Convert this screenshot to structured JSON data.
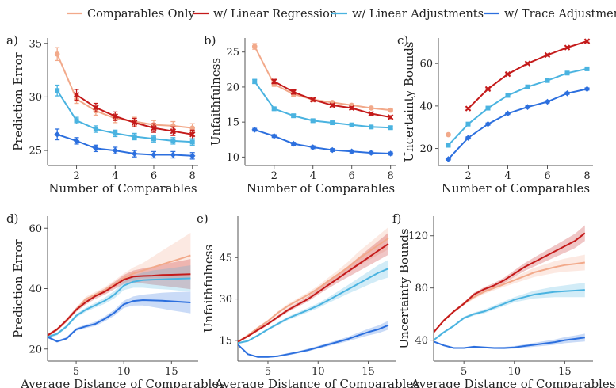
{
  "legend": [
    {
      "label": "Comparables Only",
      "color": "#f2a98a"
    },
    {
      "label": "w/ Linear Regression",
      "color": "#c41a1a"
    },
    {
      "label": "w/ Linear Adjustments",
      "color": "#4ab3e0"
    },
    {
      "label": "w/ Trace Adjustment",
      "color": "#2c6fde"
    }
  ],
  "chart_data": [
    {
      "type": "line",
      "panel": "a)",
      "xlabel": "Number of Comparables",
      "ylabel": "Prediction Error",
      "x": [
        1,
        2,
        3,
        4,
        5,
        6,
        7,
        8
      ],
      "xlim": [
        0.5,
        8.3
      ],
      "ylim": [
        23.6,
        35.5
      ],
      "xticks": [
        2,
        4,
        6,
        8
      ],
      "yticks": [
        25,
        30,
        35
      ],
      "error_bars": true,
      "series": [
        {
          "name": "Comparables Only",
          "values": [
            34.0,
            29.8,
            28.7,
            28.0,
            27.7,
            27.4,
            27.3,
            27.1
          ],
          "err": [
            0.6,
            0.4,
            0.4,
            0.4,
            0.4,
            0.4,
            0.4,
            0.4
          ]
        },
        {
          "name": "w/ Linear Regression",
          "values": [
            null,
            30.2,
            29.0,
            28.2,
            27.6,
            27.1,
            26.8,
            26.5
          ],
          "err": [
            null,
            0.5,
            0.4,
            0.4,
            0.4,
            0.4,
            0.4,
            0.4
          ]
        },
        {
          "name": "w/ Linear Adjustments",
          "values": [
            30.6,
            27.8,
            27.0,
            26.6,
            26.3,
            26.1,
            25.9,
            25.8
          ],
          "err": [
            0.5,
            0.3,
            0.3,
            0.3,
            0.3,
            0.3,
            0.3,
            0.3
          ]
        },
        {
          "name": "w/ Trace Adjustment",
          "values": [
            26.5,
            25.9,
            25.2,
            25.0,
            24.7,
            24.6,
            24.6,
            24.5
          ],
          "err": [
            0.5,
            0.3,
            0.3,
            0.3,
            0.3,
            0.3,
            0.3,
            0.3
          ]
        }
      ]
    },
    {
      "type": "line",
      "panel": "b)",
      "xlabel": "Number of Comparables",
      "ylabel": "Unfaithfulness",
      "x": [
        1,
        2,
        3,
        4,
        5,
        6,
        7,
        8
      ],
      "xlim": [
        0.5,
        8.3
      ],
      "ylim": [
        8.8,
        27
      ],
      "xticks": [
        2,
        4,
        6,
        8
      ],
      "yticks": [
        10,
        15,
        20,
        25
      ],
      "error_bars": true,
      "series": [
        {
          "name": "Comparables Only",
          "values": [
            25.8,
            20.4,
            19.0,
            18.2,
            17.8,
            17.4,
            17.0,
            16.7
          ],
          "err": [
            0.4,
            0.3,
            0.3,
            0.2,
            0.2,
            0.2,
            0.2,
            0.2
          ]
        },
        {
          "name": "w/ Linear Regression",
          "values": [
            null,
            20.8,
            19.3,
            18.2,
            17.4,
            17.0,
            16.2,
            15.7
          ],
          "err": [
            null,
            0.3,
            0.3,
            0.2,
            0.2,
            0.2,
            0.2,
            0.2
          ]
        },
        {
          "name": "w/ Linear Adjustments",
          "values": [
            20.8,
            16.9,
            15.9,
            15.2,
            14.9,
            14.6,
            14.3,
            14.2
          ],
          "err": [
            0.3,
            0.2,
            0.2,
            0.2,
            0.2,
            0.2,
            0.2,
            0.2
          ]
        },
        {
          "name": "w/ Trace Adjustment",
          "values": [
            13.9,
            13.0,
            11.9,
            11.4,
            11.0,
            10.8,
            10.6,
            10.5
          ],
          "err": [
            0.2,
            0.2,
            0.2,
            0.2,
            0.2,
            0.2,
            0.2,
            0.2
          ]
        }
      ]
    },
    {
      "type": "line",
      "panel": "c)",
      "xlabel": "Number of Comparables",
      "ylabel": "Uncertainty Bounds",
      "x": [
        1,
        2,
        3,
        4,
        5,
        6,
        7,
        8
      ],
      "xlim": [
        0.5,
        8.3
      ],
      "ylim": [
        12,
        72
      ],
      "xticks": [
        2,
        4,
        6,
        8
      ],
      "yticks": [
        20,
        40,
        60
      ],
      "error_bars": true,
      "series": [
        {
          "name": "Comparables Only",
          "values": [
            26.5,
            null,
            null,
            null,
            null,
            null,
            null,
            null
          ],
          "err": [
            0.5,
            null,
            null,
            null,
            null,
            null,
            null,
            null
          ]
        },
        {
          "name": "w/ Linear Regression",
          "values": [
            null,
            38.8,
            48.0,
            55.0,
            60.0,
            64.0,
            67.5,
            70.5
          ],
          "err": [
            null,
            0.5,
            0.5,
            0.5,
            0.5,
            0.5,
            0.5,
            0.5
          ]
        },
        {
          "name": "w/ Linear Adjustments",
          "values": [
            21.5,
            31.5,
            39.0,
            45.0,
            49.0,
            52.0,
            55.5,
            57.5
          ],
          "err": [
            0.5,
            0.5,
            0.5,
            0.5,
            0.5,
            0.5,
            0.5,
            0.5
          ]
        },
        {
          "name": "w/ Trace Adjustment",
          "values": [
            15.0,
            25.0,
            31.5,
            36.5,
            39.5,
            42.0,
            46.0,
            48.0
          ],
          "err": [
            0.5,
            0.5,
            0.5,
            0.5,
            0.5,
            0.5,
            0.5,
            0.5
          ]
        }
      ]
    },
    {
      "type": "area",
      "panel": "d)",
      "xlabel": "Average Distance of Comparables",
      "ylabel": "Prediction Error",
      "x": [
        2,
        3,
        4,
        5,
        6,
        7,
        8,
        9,
        10,
        11,
        12,
        13,
        14,
        15,
        16,
        17
      ],
      "xlim": [
        2,
        17.8
      ],
      "ylim": [
        16,
        64
      ],
      "xticks": [
        5,
        10,
        15
      ],
      "yticks": [
        20,
        40,
        60
      ],
      "bands": true,
      "series": [
        {
          "name": "Comparables Only",
          "values": [
            24.5,
            26.5,
            29.5,
            33,
            36.5,
            38,
            39.5,
            41.5,
            43.5,
            45,
            46,
            47,
            48,
            49,
            50,
            51
          ],
          "band": [
            0.5,
            0.5,
            0.6,
            0.7,
            0.8,
            0.9,
            1,
            1.2,
            1.5,
            2,
            2.5,
            3.5,
            4.5,
            5.5,
            6.5,
            7.5
          ]
        },
        {
          "name": "w/ Linear Regression",
          "values": [
            24.5,
            26.5,
            29.5,
            33,
            35.5,
            37.5,
            39,
            41,
            43,
            44,
            44.2,
            44.3,
            44.5,
            44.6,
            44.7,
            44.8
          ],
          "band": [
            0.5,
            0.5,
            0.6,
            0.7,
            0.8,
            0.9,
            1,
            1.2,
            1.5,
            2,
            2.5,
            3,
            3.5,
            4,
            4.5,
            5
          ]
        },
        {
          "name": "w/ Linear Adjustments",
          "values": [
            24,
            25,
            27.5,
            31,
            33,
            34.5,
            36,
            38,
            41,
            42.3,
            42.8,
            43,
            43.1,
            43.2,
            43.3,
            43.4
          ],
          "band": [
            0.5,
            0.5,
            0.5,
            0.6,
            0.7,
            0.8,
            1,
            1.2,
            1.5,
            2,
            2.5,
            3,
            3.3,
            3.6,
            4,
            4.3
          ]
        },
        {
          "name": "w/ Trace Adjustment",
          "values": [
            24,
            22.5,
            23.5,
            26.5,
            27.5,
            28.3,
            30,
            32,
            34.8,
            35.9,
            36.2,
            36.1,
            36,
            35.8,
            35.6,
            35.4
          ],
          "band": [
            0.4,
            0.4,
            0.4,
            0.5,
            0.6,
            0.7,
            0.8,
            1,
            1.2,
            1.5,
            1.8,
            2.2,
            2.6,
            3,
            3.3,
            3.6
          ]
        }
      ]
    },
    {
      "type": "area",
      "panel": "e)",
      "xlabel": "Average Distance of Comparables",
      "ylabel": "Unfaithfulness",
      "x": [
        2,
        3,
        4,
        5,
        6,
        7,
        8,
        9,
        10,
        11,
        12,
        13,
        14,
        15,
        16,
        17
      ],
      "xlim": [
        2,
        17.8
      ],
      "ylim": [
        7.5,
        60
      ],
      "xticks": [
        5,
        10,
        15
      ],
      "yticks": [
        15,
        30,
        45
      ],
      "bands": true,
      "series": [
        {
          "name": "Comparables Only",
          "values": [
            14.5,
            16.8,
            19.5,
            22,
            25,
            27.5,
            29.5,
            31.5,
            33.8,
            36.5,
            39,
            41.5,
            44.5,
            47,
            49.5,
            52
          ],
          "band": [
            0.4,
            0.4,
            0.5,
            0.5,
            0.6,
            0.7,
            0.8,
            0.9,
            1,
            1.2,
            1.5,
            2,
            2.5,
            3,
            3.5,
            4
          ]
        },
        {
          "name": "w/ Linear Regression",
          "values": [
            14.5,
            16.5,
            18.8,
            21,
            23.5,
            26,
            28,
            30,
            32.5,
            35,
            37.5,
            40,
            42.5,
            45,
            47.5,
            50
          ],
          "band": [
            0.4,
            0.4,
            0.5,
            0.5,
            0.6,
            0.7,
            0.8,
            0.9,
            1,
            1.2,
            1.5,
            2,
            2.5,
            3,
            3.5,
            4
          ]
        },
        {
          "name": "w/ Linear Adjustments",
          "values": [
            14,
            14.8,
            16.8,
            19,
            21,
            23,
            24.5,
            26,
            27.6,
            29.5,
            31.5,
            33.5,
            35.5,
            37.5,
            39.5,
            41
          ],
          "band": [
            0.3,
            0.3,
            0.4,
            0.4,
            0.5,
            0.6,
            0.7,
            0.8,
            0.9,
            1,
            1.3,
            1.6,
            2,
            2.4,
            2.8,
            3.2
          ]
        },
        {
          "name": "w/ Trace Adjustment",
          "values": [
            13.5,
            10,
            9,
            9,
            9.3,
            10,
            10.7,
            11.5,
            12.5,
            13.5,
            14.5,
            15.5,
            16.8,
            18,
            19,
            20.5
          ],
          "band": [
            0.3,
            0.3,
            0.3,
            0.3,
            0.3,
            0.4,
            0.4,
            0.5,
            0.5,
            0.6,
            0.7,
            0.8,
            1,
            1.2,
            1.4,
            1.6
          ]
        }
      ]
    },
    {
      "type": "area",
      "panel": "f)",
      "xlabel": "Average Distance of Comparables",
      "ylabel": "Uncertainty Bounds",
      "x": [
        2,
        3,
        4,
        5,
        6,
        7,
        8,
        9,
        10,
        11,
        12,
        13,
        14,
        15,
        16,
        17
      ],
      "xlim": [
        2,
        17.8
      ],
      "ylim": [
        24,
        135
      ],
      "xticks": [
        5,
        10,
        15
      ],
      "yticks": [
        40,
        80,
        120
      ],
      "bands": true,
      "series": [
        {
          "name": "Comparables Only",
          "values": [
            46,
            55,
            62,
            68,
            73,
            77,
            80,
            83,
            86,
            89,
            92,
            94,
            96,
            97.5,
            98.5,
            99.5
          ],
          "band": [
            1,
            1,
            1,
            1.2,
            1.4,
            1.6,
            1.8,
            2,
            2.5,
            3,
            3.5,
            4,
            4.5,
            5,
            5.5,
            6
          ]
        },
        {
          "name": "w/ Linear Regression",
          "values": [
            46,
            55,
            62,
            68,
            75,
            79,
            82,
            86,
            91,
            96,
            100,
            104,
            108,
            112,
            116,
            122
          ],
          "band": [
            1,
            1,
            1,
            1.2,
            1.4,
            1.6,
            1.8,
            2,
            2.5,
            3,
            3.5,
            4,
            4.5,
            5,
            5.5,
            6
          ]
        },
        {
          "name": "w/ Linear Adjustments",
          "values": [
            40,
            46,
            51,
            57,
            60,
            62,
            65,
            68,
            71,
            73,
            75,
            76,
            77,
            77.5,
            78,
            78.5
          ],
          "band": [
            0.8,
            0.8,
            0.9,
            1,
            1.2,
            1.4,
            1.6,
            1.8,
            2,
            2.5,
            3,
            3.5,
            4,
            4.5,
            5,
            5.5
          ]
        },
        {
          "name": "w/ Trace Adjustment",
          "values": [
            39,
            36,
            34,
            34,
            35,
            34.5,
            34,
            34,
            34.5,
            35.5,
            36.5,
            37.5,
            38.5,
            40,
            41,
            42
          ],
          "band": [
            0.5,
            0.5,
            0.5,
            0.5,
            0.6,
            0.7,
            0.8,
            0.9,
            1,
            1.2,
            1.5,
            1.8,
            2,
            2.3,
            2.6,
            3
          ]
        }
      ]
    }
  ]
}
